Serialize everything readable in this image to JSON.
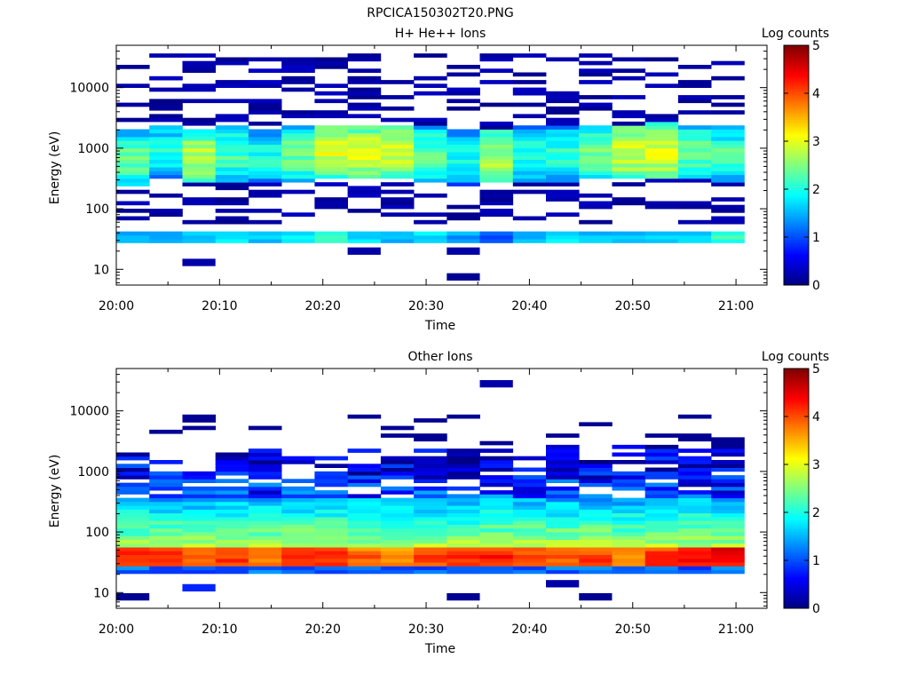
{
  "figure": {
    "title": "RPCICA150302T20.PNG"
  },
  "colorbar_palette": [
    "#00007f",
    "#0000ff",
    "#0080ff",
    "#00ffff",
    "#80ff80",
    "#ffff00",
    "#ff8000",
    "#ff0000",
    "#7f0000"
  ],
  "chart_data": [
    {
      "type": "heatmap",
      "title": "H+ He++ Ions",
      "xlabel": "Time",
      "ylabel": "Energy (eV)",
      "x_ticks": [
        "20:00",
        "20:10",
        "20:20",
        "20:30",
        "20:40",
        "20:50",
        "21:00"
      ],
      "x_tick_minutes": [
        0,
        10,
        20,
        30,
        40,
        50,
        60
      ],
      "x_range_minutes": [
        0,
        63
      ],
      "y_scale": "log",
      "y_ticks": [
        "10",
        "100",
        "1000",
        "10000"
      ],
      "y_tick_values": [
        10,
        100,
        1000,
        10000
      ],
      "y_range": [
        5.5,
        50000
      ],
      "colorbar": {
        "label": "Log counts",
        "ticks": [
          "0",
          "1",
          "2",
          "3",
          "4",
          "5"
        ],
        "range": [
          0,
          5
        ]
      },
      "time_bins_start_minutes": [
        0,
        3.2,
        6.4,
        9.6,
        12.8,
        16,
        19.2,
        22.4,
        25.6,
        28.8,
        32,
        35.2,
        38.4,
        41.6,
        44.8,
        48,
        51.2,
        54.4,
        57.6
      ],
      "time_bin_width_minutes": 3.2,
      "peak_energy_eV": [
        700,
        900,
        750,
        800,
        750,
        800,
        900,
        900,
        900,
        800,
        700,
        750,
        800,
        800,
        850,
        900,
        950,
        850,
        800
      ],
      "peak_log_counts": [
        2.6,
        2.3,
        3.0,
        2.5,
        2.3,
        2.7,
        3.2,
        3.2,
        3.1,
        2.6,
        2.2,
        3.0,
        2.3,
        2.4,
        2.7,
        3.2,
        3.3,
        2.6,
        2.5
      ],
      "low_band_eV": [
        28,
        45
      ],
      "low_band_log_counts": [
        1.8,
        1.8,
        2.0,
        2.0,
        1.9,
        2.0,
        2.2,
        1.9,
        1.8,
        1.9,
        1.6,
        1.4,
        1.7,
        1.9,
        1.9,
        1.7,
        1.8,
        1.9,
        2.3
      ],
      "isolated_pixels": [
        {
          "time_minutes": 6.4,
          "energy_eV": 13,
          "log_counts": 0.2
        },
        {
          "time_minutes": 32,
          "energy_eV": 7.5,
          "log_counts": 0.1
        },
        {
          "time_minutes": 32,
          "energy_eV": 20,
          "log_counts": 0.2
        },
        {
          "time_minutes": 22.4,
          "energy_eV": 20,
          "log_counts": 0.2
        }
      ]
    },
    {
      "type": "heatmap",
      "title": "Other Ions",
      "xlabel": "Time",
      "ylabel": "Energy (eV)",
      "x_ticks": [
        "20:00",
        "20:10",
        "20:20",
        "20:30",
        "20:40",
        "20:50",
        "21:00"
      ],
      "x_tick_minutes": [
        0,
        10,
        20,
        30,
        40,
        50,
        60
      ],
      "x_range_minutes": [
        0,
        63
      ],
      "y_scale": "log",
      "y_ticks": [
        "10",
        "100",
        "1000",
        "10000"
      ],
      "y_tick_values": [
        10,
        100,
        1000,
        10000
      ],
      "y_range": [
        5.5,
        50000
      ],
      "colorbar": {
        "label": "Log counts",
        "ticks": [
          "0",
          "1",
          "2",
          "3",
          "4",
          "5"
        ],
        "range": [
          0,
          5
        ]
      },
      "time_bins_start_minutes": [
        0,
        3.2,
        6.4,
        9.6,
        12.8,
        16,
        19.2,
        22.4,
        25.6,
        28.8,
        32,
        35.2,
        38.4,
        41.6,
        44.8,
        48,
        51.2,
        54.4,
        57.6
      ],
      "time_bin_width_minutes": 3.2,
      "peak_energy_eV": [
        38,
        38,
        38,
        38,
        38,
        38,
        38,
        38,
        38,
        38,
        38,
        38,
        38,
        38,
        38,
        38,
        38,
        38,
        42
      ],
      "peak_log_counts": [
        4.5,
        4.3,
        4.1,
        4.3,
        4.0,
        4.5,
        4.4,
        4.1,
        4.0,
        4.3,
        4.4,
        4.5,
        4.2,
        4.1,
        4.3,
        4.0,
        4.4,
        4.5,
        4.7
      ],
      "upper_extent_eV": [
        2500,
        1500,
        1000,
        2300,
        2300,
        2500,
        3000,
        2500,
        2700,
        2300,
        2300,
        2500,
        2300,
        2800,
        2800,
        2800,
        2800,
        2500,
        2500
      ],
      "isolated_pixels": [
        {
          "time_minutes": 0,
          "energy_eV": 8.5,
          "log_counts": 0.1
        },
        {
          "time_minutes": 6.4,
          "energy_eV": 12,
          "log_counts": 0.8
        },
        {
          "time_minutes": 32,
          "energy_eV": 8.5,
          "log_counts": 0.1
        },
        {
          "time_minutes": 41.6,
          "energy_eV": 14,
          "log_counts": 0.2
        },
        {
          "time_minutes": 44.8,
          "energy_eV": 8.5,
          "log_counts": 0.1
        },
        {
          "time_minutes": 35.2,
          "energy_eV": 28000,
          "log_counts": 0.2
        }
      ]
    }
  ]
}
